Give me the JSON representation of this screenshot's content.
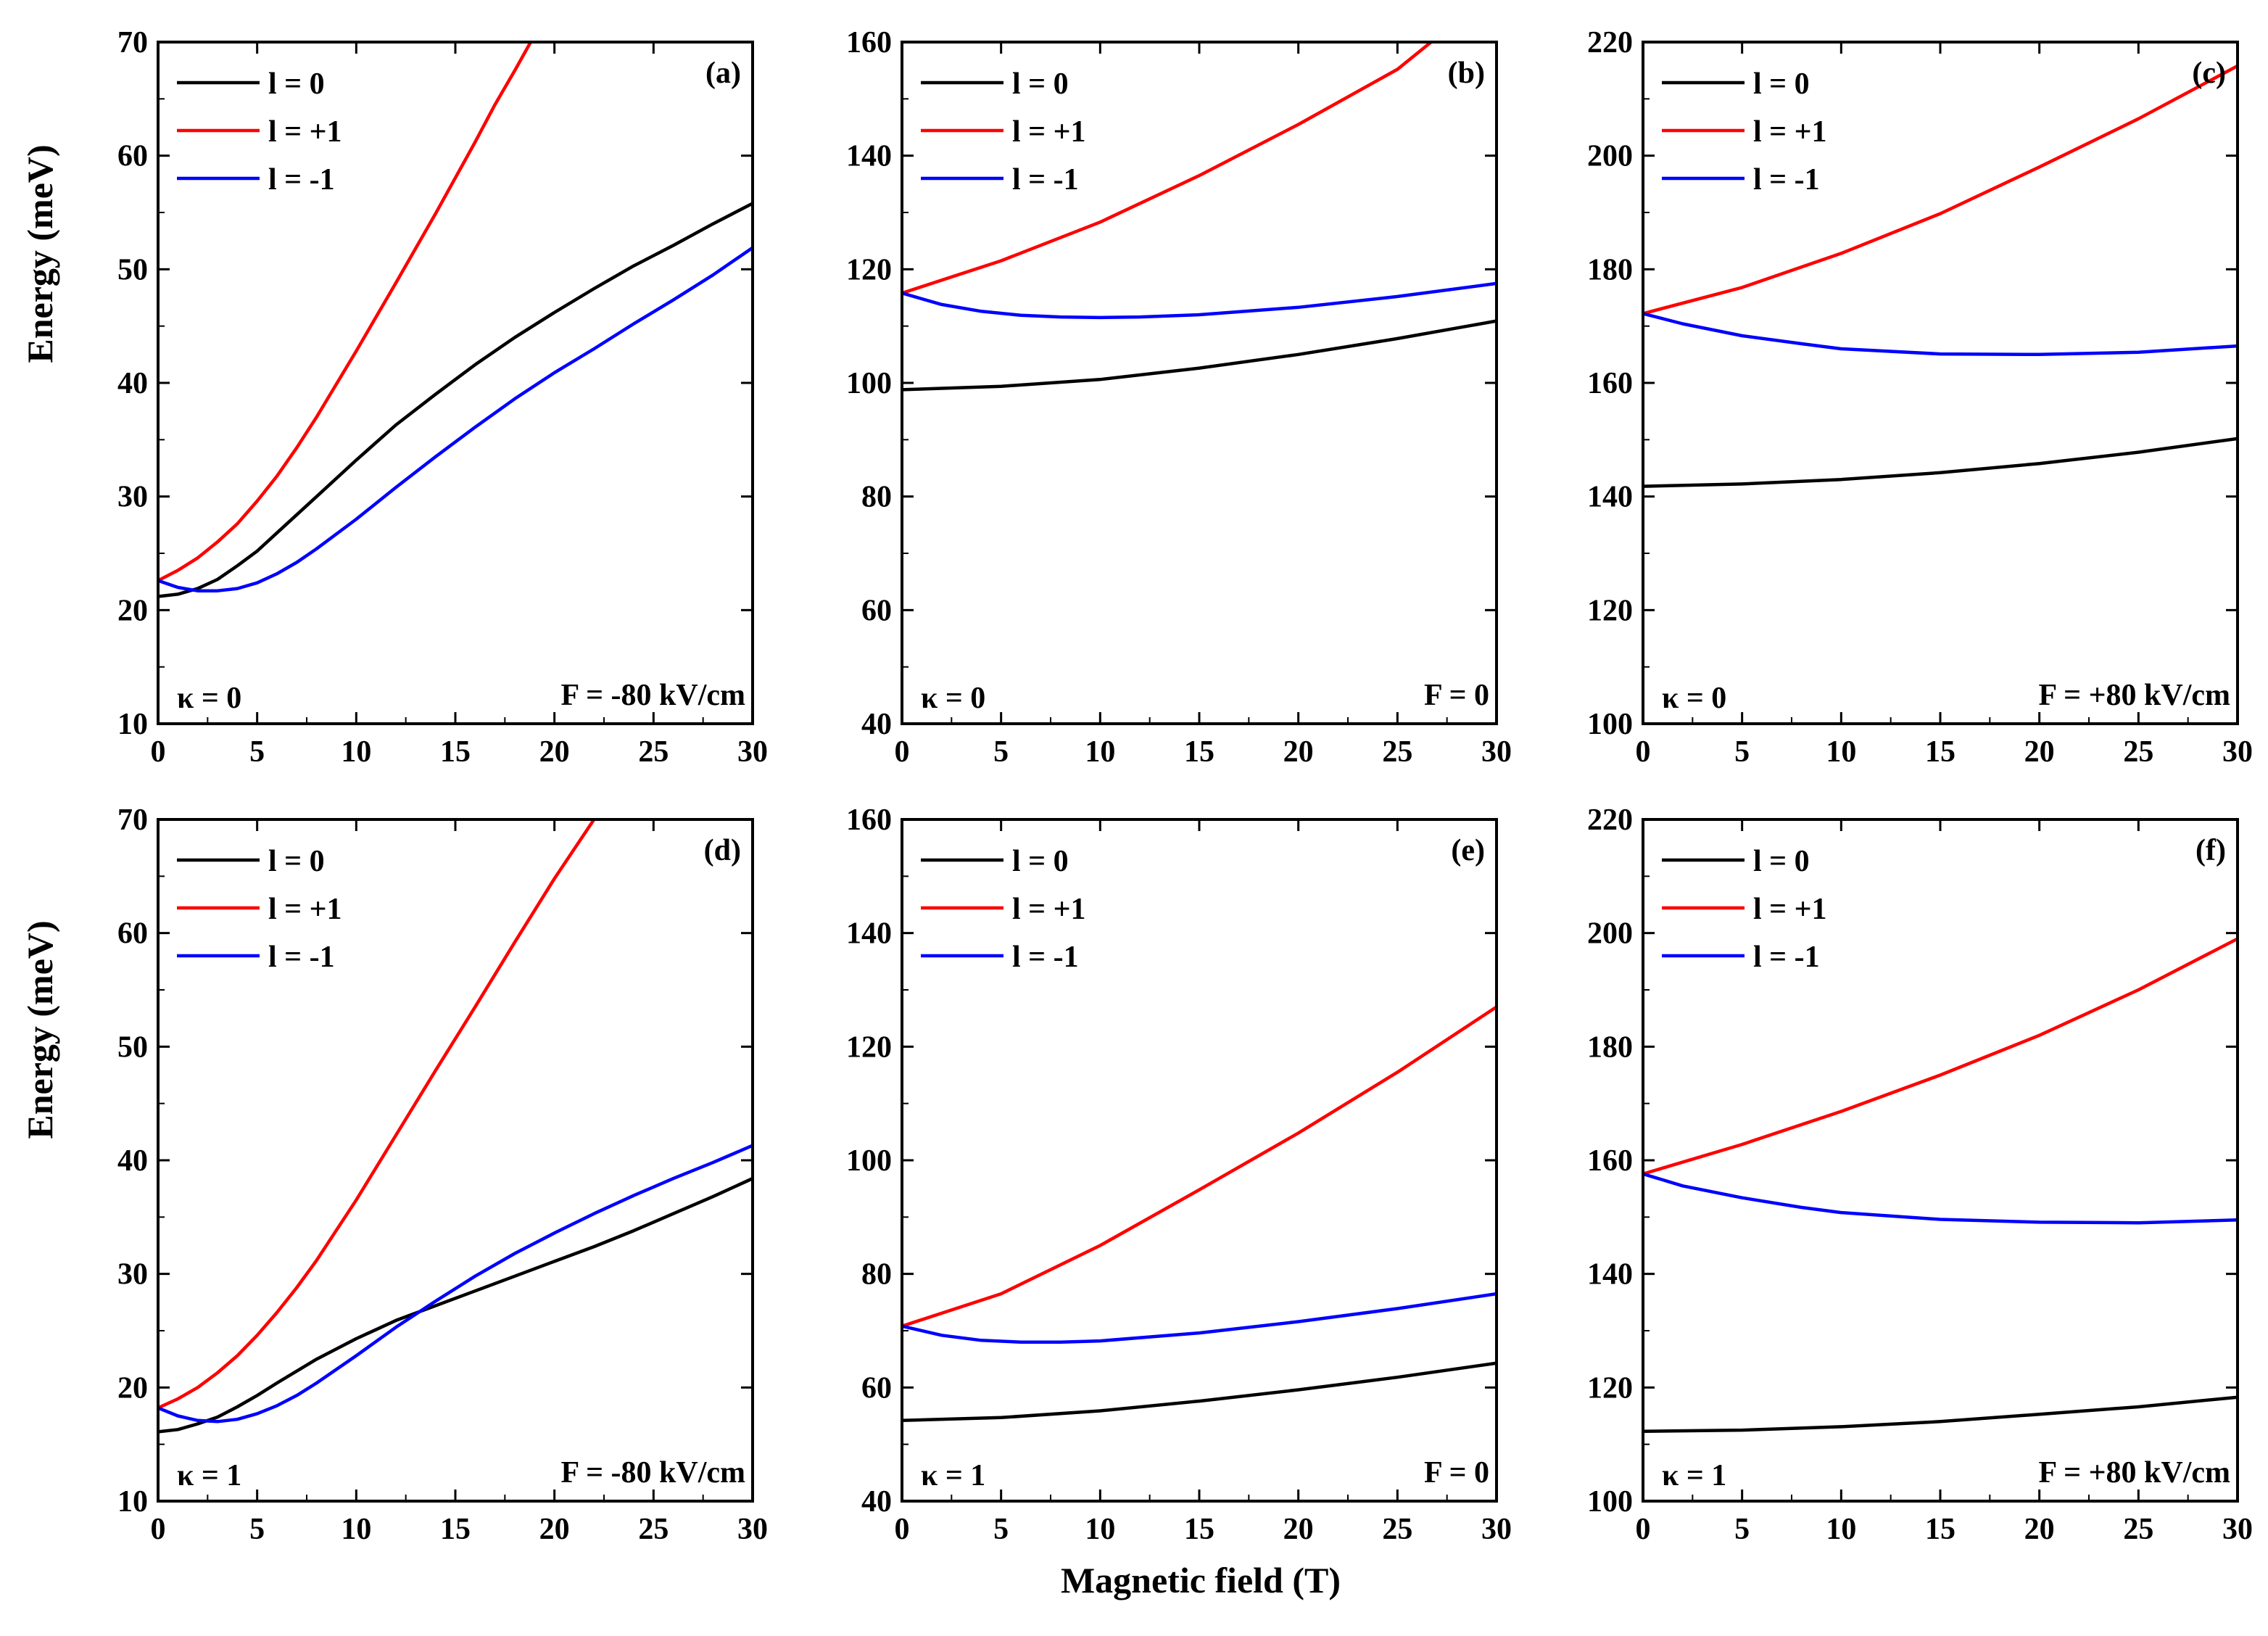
{
  "figure": {
    "shared_ylabel": "Energy (meV)",
    "shared_xlabel": "Magnetic field (T)"
  },
  "chart_data": [
    {
      "type": "line",
      "panel": "(a)",
      "kappa": "κ = 0",
      "field": "F = -80 kV/cm",
      "xlim": [
        0,
        30
      ],
      "ylim": [
        10,
        70
      ],
      "xticks": [
        0,
        5,
        10,
        15,
        20,
        25,
        30
      ],
      "yticks": [
        10,
        20,
        30,
        40,
        50,
        60,
        70
      ],
      "series": [
        {
          "name": "l = 0",
          "color": "#000000",
          "x": [
            0,
            1,
            2,
            3,
            4,
            5,
            6,
            8,
            10,
            12,
            14,
            16,
            18,
            20,
            22,
            24,
            26,
            28,
            30
          ],
          "y": [
            21.2,
            21.4,
            21.9,
            22.7,
            23.9,
            25.2,
            26.8,
            30.0,
            33.2,
            36.3,
            39.0,
            41.6,
            44.0,
            46.2,
            48.3,
            50.3,
            52.1,
            54.0,
            55.8
          ]
        },
        {
          "name": "l = +1",
          "color": "#ff0000",
          "x": [
            0,
            1,
            2,
            3,
            4,
            5,
            6,
            7,
            8,
            10,
            12,
            14,
            16,
            17,
            18,
            18.8
          ],
          "y": [
            22.6,
            23.5,
            24.6,
            26.0,
            27.6,
            29.6,
            31.8,
            34.3,
            37.0,
            42.8,
            48.8,
            54.9,
            61.2,
            64.5,
            67.5,
            70.0
          ]
        },
        {
          "name": "l = -1",
          "color": "#0000ff",
          "x": [
            0,
            1,
            2,
            3,
            4,
            5,
            6,
            7,
            8,
            10,
            12,
            14,
            16,
            18,
            20,
            22,
            24,
            26,
            28,
            30
          ],
          "y": [
            22.6,
            22.0,
            21.7,
            21.7,
            21.9,
            22.4,
            23.2,
            24.2,
            25.4,
            28.0,
            30.8,
            33.5,
            36.1,
            38.6,
            40.9,
            43.0,
            45.2,
            47.3,
            49.5,
            51.9
          ]
        }
      ]
    },
    {
      "type": "line",
      "panel": "(b)",
      "kappa": "κ = 0",
      "field": "F = 0",
      "xlim": [
        0,
        30
      ],
      "ylim": [
        40,
        160
      ],
      "xticks": [
        0,
        5,
        10,
        15,
        20,
        25,
        30
      ],
      "yticks": [
        40,
        60,
        80,
        100,
        120,
        140,
        160
      ],
      "series": [
        {
          "name": "l = 0",
          "color": "#000000",
          "x": [
            0,
            5,
            10,
            15,
            20,
            25,
            30
          ],
          "y": [
            98.8,
            99.4,
            100.6,
            102.6,
            105.0,
            107.8,
            110.9
          ]
        },
        {
          "name": "l = +1",
          "color": "#ff0000",
          "x": [
            0,
            5,
            10,
            15,
            20,
            25,
            26.7
          ],
          "y": [
            115.8,
            121.5,
            128.3,
            136.5,
            145.5,
            155.2,
            160.0
          ]
        },
        {
          "name": "l = -1",
          "color": "#0000ff",
          "x": [
            0,
            2,
            4,
            6,
            8,
            10,
            12,
            15,
            20,
            25,
            30
          ],
          "y": [
            115.8,
            113.8,
            112.6,
            111.9,
            111.6,
            111.5,
            111.6,
            112.0,
            113.3,
            115.2,
            117.5
          ]
        }
      ]
    },
    {
      "type": "line",
      "panel": "(c)",
      "kappa": "κ = 0",
      "field": "F = +80 kV/cm",
      "xlim": [
        0,
        30
      ],
      "ylim": [
        100,
        220
      ],
      "xticks": [
        0,
        5,
        10,
        15,
        20,
        25,
        30
      ],
      "yticks": [
        100,
        120,
        140,
        160,
        180,
        200,
        220
      ],
      "series": [
        {
          "name": "l = 0",
          "color": "#000000",
          "x": [
            0,
            5,
            10,
            15,
            20,
            25,
            30
          ],
          "y": [
            141.8,
            142.2,
            143.0,
            144.2,
            145.8,
            147.8,
            150.2
          ]
        },
        {
          "name": "l = +1",
          "color": "#ff0000",
          "x": [
            0,
            5,
            10,
            15,
            20,
            25,
            30
          ],
          "y": [
            172.2,
            176.8,
            182.8,
            189.8,
            198.0,
            206.5,
            215.8
          ]
        },
        {
          "name": "l = -1",
          "color": "#0000ff",
          "x": [
            0,
            2,
            5,
            8,
            10,
            15,
            20,
            25,
            30
          ],
          "y": [
            172.2,
            170.4,
            168.3,
            166.9,
            166.0,
            165.1,
            165.0,
            165.4,
            166.5
          ]
        }
      ]
    },
    {
      "type": "line",
      "panel": "(d)",
      "kappa": "κ = 1",
      "field": "F = -80 kV/cm",
      "xlim": [
        0,
        30
      ],
      "ylim": [
        10,
        70
      ],
      "xticks": [
        0,
        5,
        10,
        15,
        20,
        25,
        30
      ],
      "yticks": [
        10,
        20,
        30,
        40,
        50,
        60,
        70
      ],
      "series": [
        {
          "name": "l = 0",
          "color": "#000000",
          "x": [
            0,
            1,
            2,
            3,
            4,
            5,
            6,
            8,
            10,
            12,
            14,
            16,
            18,
            20,
            22,
            24,
            26,
            28,
            30
          ],
          "y": [
            16.1,
            16.3,
            16.8,
            17.4,
            18.3,
            19.3,
            20.4,
            22.5,
            24.3,
            25.9,
            27.2,
            28.5,
            29.8,
            31.1,
            32.4,
            33.8,
            35.3,
            36.8,
            38.4
          ]
        },
        {
          "name": "l = +1",
          "color": "#ff0000",
          "x": [
            0,
            1,
            2,
            3,
            4,
            5,
            6,
            7,
            8,
            10,
            12,
            14,
            16,
            18,
            20,
            22
          ],
          "y": [
            18.2,
            19.0,
            20.0,
            21.3,
            22.8,
            24.6,
            26.6,
            28.8,
            31.2,
            36.5,
            42.2,
            47.9,
            53.5,
            59.2,
            64.8,
            70.0
          ]
        },
        {
          "name": "l = -1",
          "color": "#0000ff",
          "x": [
            0,
            1,
            2,
            3,
            4,
            5,
            6,
            7,
            8,
            10,
            12,
            14,
            16,
            18,
            20,
            22,
            24,
            26,
            28,
            30
          ],
          "y": [
            18.2,
            17.5,
            17.1,
            17.0,
            17.2,
            17.7,
            18.4,
            19.3,
            20.4,
            22.8,
            25.3,
            27.6,
            29.8,
            31.8,
            33.6,
            35.3,
            36.9,
            38.4,
            39.8,
            41.3
          ]
        }
      ]
    },
    {
      "type": "line",
      "panel": "(e)",
      "kappa": "κ = 1",
      "field": "F = 0",
      "xlim": [
        0,
        30
      ],
      "ylim": [
        40,
        160
      ],
      "xticks": [
        0,
        5,
        10,
        15,
        20,
        25,
        30
      ],
      "yticks": [
        40,
        60,
        80,
        100,
        120,
        140,
        160
      ],
      "series": [
        {
          "name": "l = 0",
          "color": "#000000",
          "x": [
            0,
            5,
            10,
            15,
            20,
            25,
            30
          ],
          "y": [
            54.2,
            54.7,
            55.9,
            57.6,
            59.6,
            61.8,
            64.3
          ]
        },
        {
          "name": "l = +1",
          "color": "#ff0000",
          "x": [
            0,
            5,
            10,
            15,
            20,
            25,
            30
          ],
          "y": [
            70.8,
            76.5,
            85.0,
            94.8,
            104.8,
            115.5,
            127.0
          ]
        },
        {
          "name": "l = -1",
          "color": "#0000ff",
          "x": [
            0,
            2,
            4,
            6,
            8,
            10,
            15,
            20,
            25,
            30
          ],
          "y": [
            70.8,
            69.2,
            68.3,
            68.0,
            68.0,
            68.2,
            69.6,
            71.6,
            73.9,
            76.5
          ]
        }
      ]
    },
    {
      "type": "line",
      "panel": "(f)",
      "kappa": "κ = 1",
      "field": "F = +80 kV/cm",
      "xlim": [
        0,
        30
      ],
      "ylim": [
        100,
        220
      ],
      "xticks": [
        0,
        5,
        10,
        15,
        20,
        25,
        30
      ],
      "yticks": [
        100,
        120,
        140,
        160,
        180,
        200,
        220
      ],
      "series": [
        {
          "name": "l =  0",
          "color": "#000000",
          "x": [
            0,
            5,
            10,
            15,
            20,
            25,
            30
          ],
          "y": [
            112.3,
            112.5,
            113.1,
            114.0,
            115.3,
            116.6,
            118.3
          ]
        },
        {
          "name": "l = +1",
          "color": "#ff0000",
          "x": [
            0,
            5,
            10,
            15,
            20,
            25,
            30
          ],
          "y": [
            157.6,
            162.8,
            168.6,
            175.0,
            182.0,
            190.0,
            199.0
          ]
        },
        {
          "name": "l = -1",
          "color": "#0000ff",
          "x": [
            0,
            2,
            5,
            8,
            10,
            15,
            20,
            25,
            30
          ],
          "y": [
            157.6,
            155.5,
            153.4,
            151.7,
            150.8,
            149.6,
            149.1,
            149.0,
            149.5
          ]
        }
      ]
    }
  ]
}
